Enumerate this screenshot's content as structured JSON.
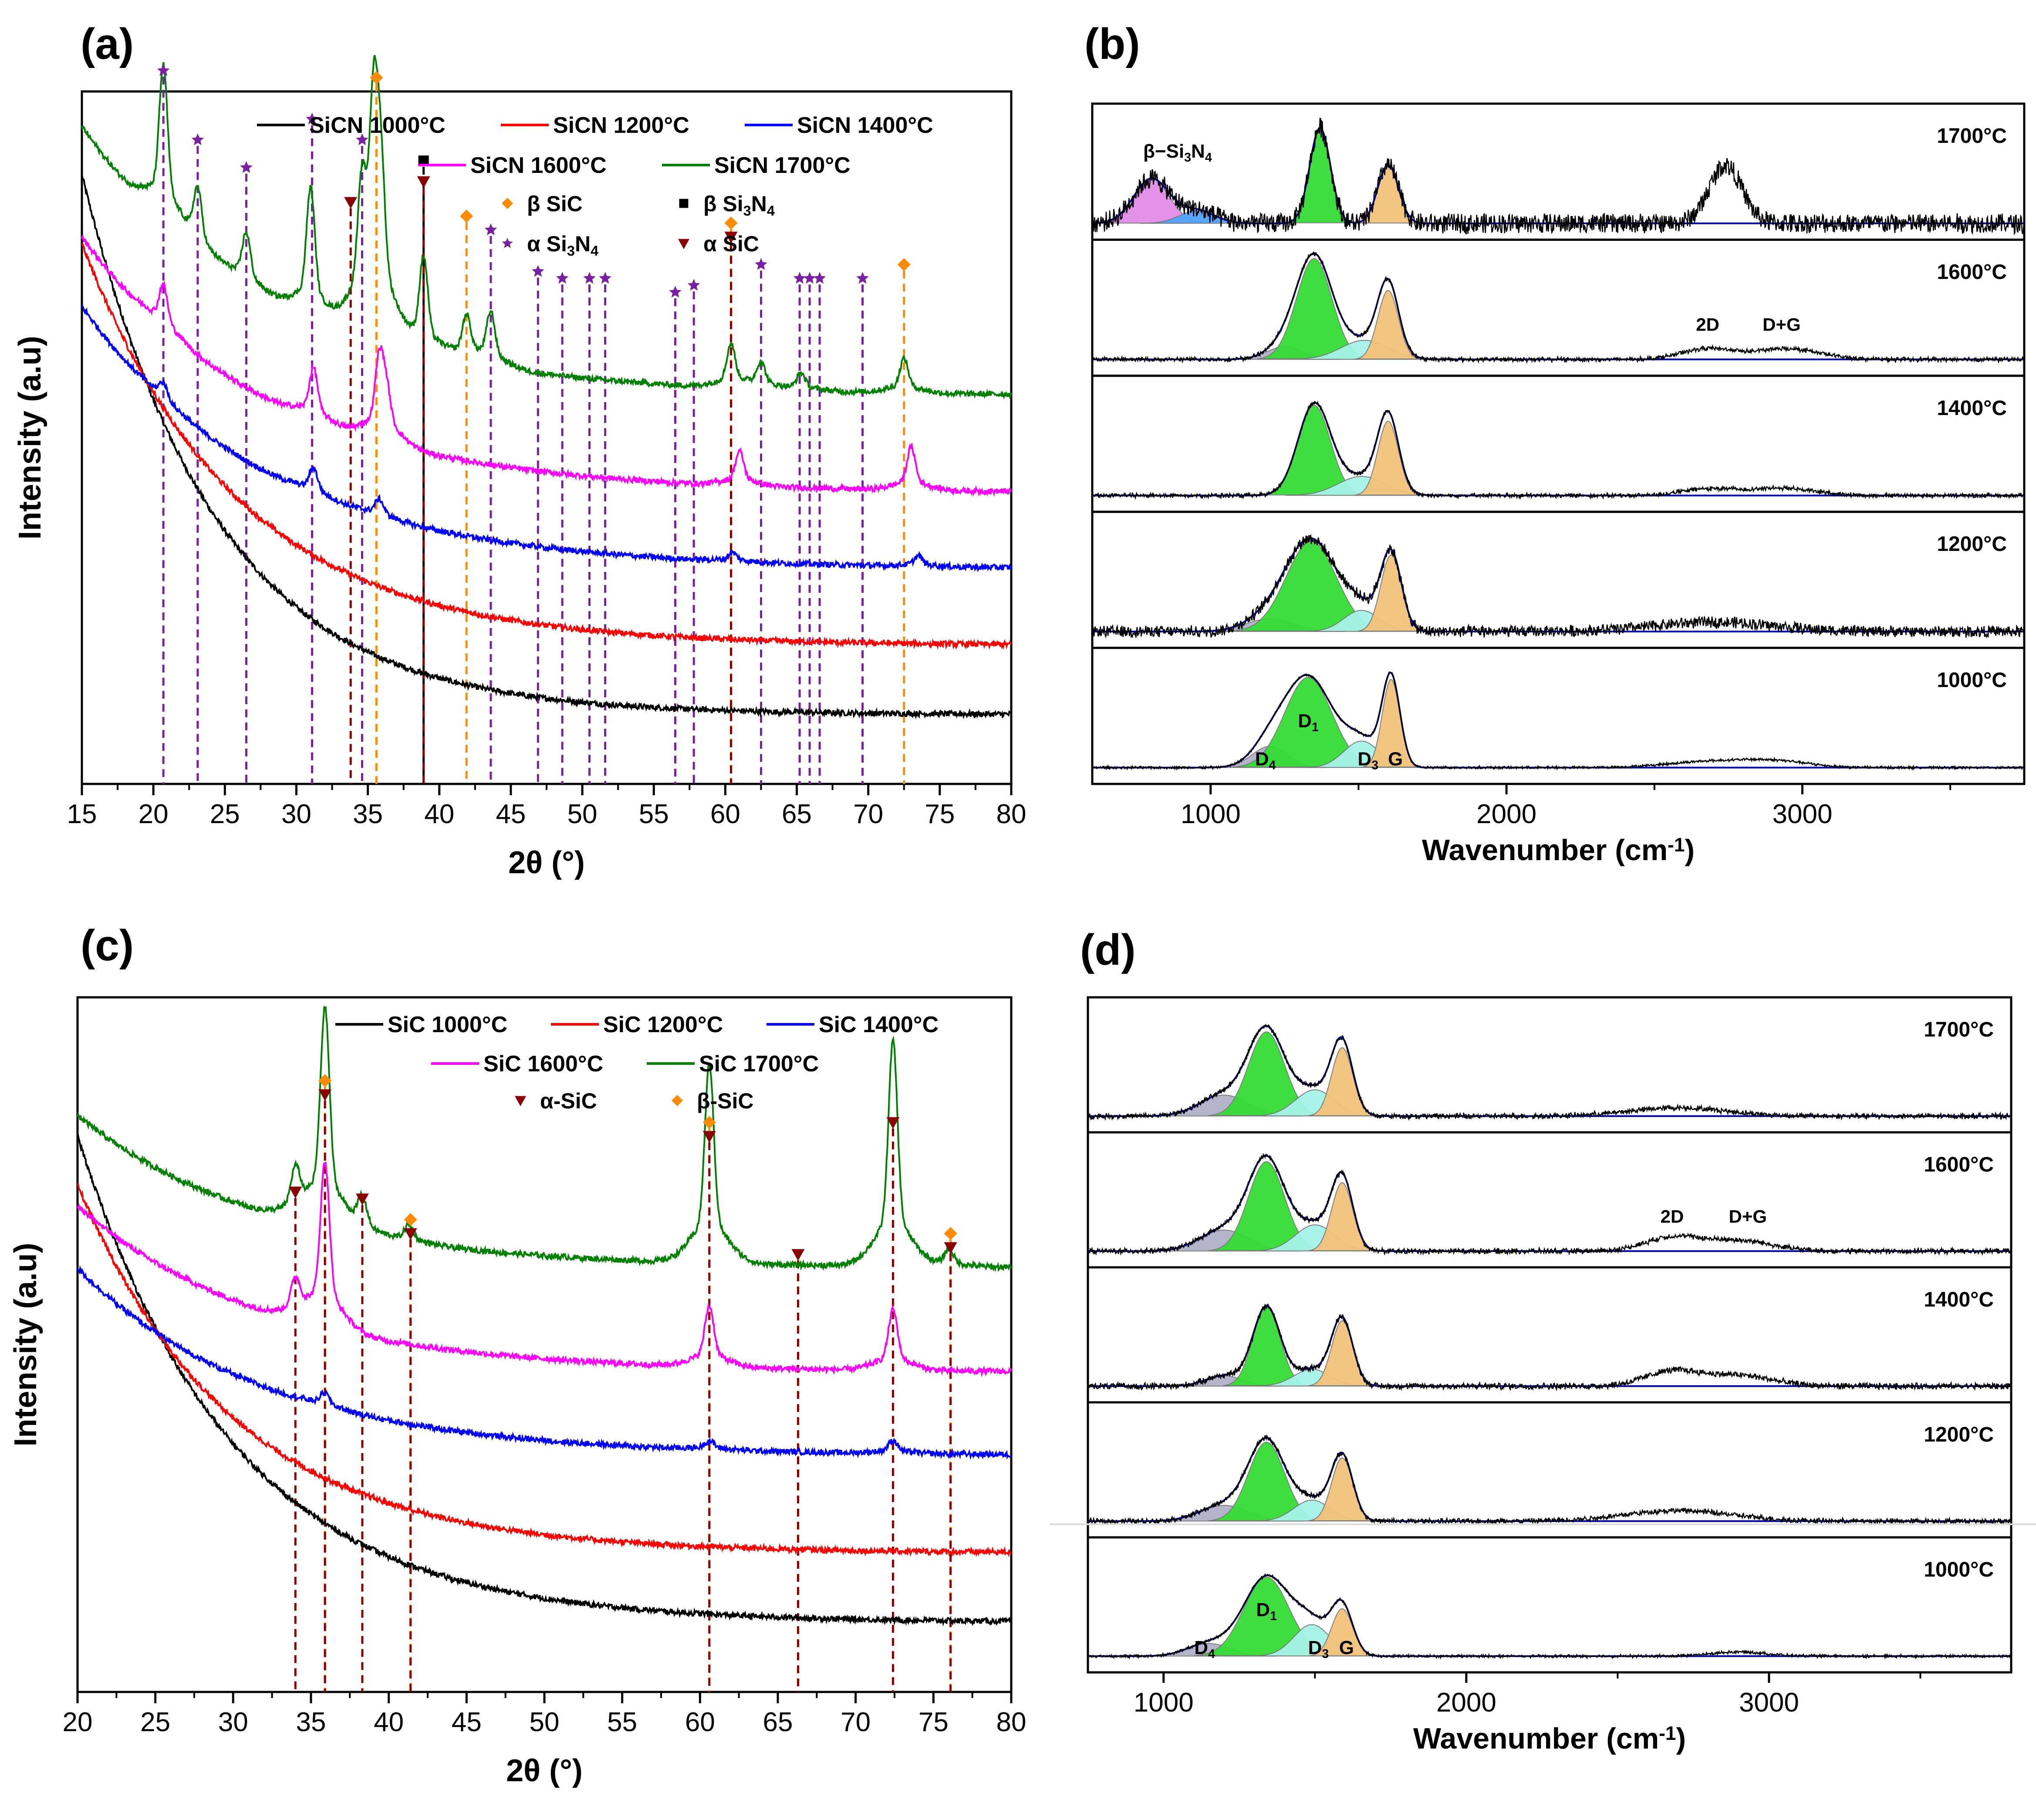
{
  "panels": {
    "a": {
      "label": "(a)"
    },
    "b": {
      "label": "(b)"
    },
    "c": {
      "label": "(c)"
    },
    "d": {
      "label": "(d)"
    }
  },
  "colors": {
    "black": "#000000",
    "red": "#ff0000",
    "blue": "#0000ff",
    "magenta": "#ff00ff",
    "green": "#008000",
    "purple": "#7b1fa2",
    "orange": "#ff8c00",
    "darkred": "#8b0000",
    "navy": "#0000aa",
    "fill_d4": "#b0b0c8",
    "fill_d1": "#33dd33",
    "fill_d3": "#a6f3e8",
    "fill_g": "#f2c27a",
    "fill_sn1": "#e38de8",
    "fill_sn2": "#4fa3ff"
  },
  "chart_data": [
    {
      "id": "a",
      "type": "line",
      "xlabel": "2θ (°)",
      "ylabel": "Intensity (a.u)",
      "xlim": [
        15,
        80
      ],
      "xticks": [
        "15",
        "20",
        "25",
        "30",
        "35",
        "40",
        "45",
        "50",
        "55",
        "60",
        "65",
        "70",
        "75",
        "80"
      ],
      "series": [
        {
          "name": "SiCN 1000°C",
          "color": "black",
          "start": 0.88,
          "end": 0.1,
          "decay": 7,
          "peaks": []
        },
        {
          "name": "SiCN 1200°C",
          "color": "red",
          "start": 0.78,
          "end": 0.2,
          "decay": 6,
          "peaks": []
        },
        {
          "name": "SiCN 1400°C",
          "color": "blue",
          "start": 0.69,
          "end": 0.31,
          "decay": 5,
          "peaks": [
            [
              20.7,
              0.02
            ],
            [
              31.2,
              0.03
            ],
            [
              35.8,
              0.02
            ],
            [
              60.5,
              0.01
            ],
            [
              73.5,
              0.012
            ]
          ]
        },
        {
          "name": "SiCN 1600°C",
          "color": "magenta",
          "start": 0.79,
          "end": 0.42,
          "decay": 5,
          "peaks": [
            [
              20.7,
              0.05
            ],
            [
              31.2,
              0.06
            ],
            [
              35.8,
              0.09
            ],
            [
              36.3,
              0.05
            ],
            [
              61,
              0.04
            ],
            [
              73,
              0.05
            ]
          ]
        },
        {
          "name": "SiCN 1700°C",
          "color": "green",
          "start": 0.95,
          "end": 0.56,
          "decay": 5,
          "peaks": [
            [
              20.7,
              0.18
            ],
            [
              23.1,
              0.07
            ],
            [
              26.5,
              0.06
            ],
            [
              31,
              0.15
            ],
            [
              34.6,
              0.14
            ],
            [
              35.4,
              0.24
            ],
            [
              35.9,
              0.16
            ],
            [
              38.9,
              0.11
            ],
            [
              41.9,
              0.05
            ],
            [
              43.6,
              0.06
            ],
            [
              60.4,
              0.05
            ],
            [
              62.5,
              0.03
            ],
            [
              65.3,
              0.02
            ],
            [
              72.5,
              0.04
            ]
          ]
        }
      ],
      "markers": [
        {
          "x": 20.7,
          "type": "alpha_si3n4",
          "top": 1.03
        },
        {
          "x": 23.1,
          "type": "alpha_si3n4",
          "top": 0.93
        },
        {
          "x": 26.5,
          "type": "alpha_si3n4",
          "top": 0.89
        },
        {
          "x": 31.1,
          "type": "alpha_si3n4",
          "top": 0.96
        },
        {
          "x": 33.8,
          "type": "alpha_sic",
          "top": 0.84
        },
        {
          "x": 34.6,
          "type": "alpha_si3n4",
          "top": 0.93
        },
        {
          "x": 35.6,
          "type": "beta_sic",
          "top": 1.02
        },
        {
          "x": 38.9,
          "type": "beta_si3n4",
          "top": 0.9
        },
        {
          "x": 38.9,
          "type": "alpha_sic",
          "top": 0.87
        },
        {
          "x": 41.9,
          "type": "beta_sic",
          "top": 0.82
        },
        {
          "x": 43.6,
          "type": "alpha_si3n4",
          "top": 0.8
        },
        {
          "x": 46.9,
          "type": "alpha_si3n4",
          "top": 0.74
        },
        {
          "x": 48.6,
          "type": "alpha_si3n4",
          "top": 0.73
        },
        {
          "x": 50.5,
          "type": "alpha_si3n4",
          "top": 0.73
        },
        {
          "x": 51.6,
          "type": "alpha_si3n4",
          "top": 0.73
        },
        {
          "x": 56.5,
          "type": "alpha_si3n4",
          "top": 0.71
        },
        {
          "x": 57.8,
          "type": "alpha_si3n4",
          "top": 0.72
        },
        {
          "x": 60.4,
          "type": "beta_sic",
          "top": 0.81
        },
        {
          "x": 60.4,
          "type": "alpha_sic",
          "top": 0.79
        },
        {
          "x": 62.5,
          "type": "alpha_si3n4",
          "top": 0.75
        },
        {
          "x": 65.2,
          "type": "alpha_si3n4",
          "top": 0.73
        },
        {
          "x": 65.9,
          "type": "alpha_si3n4",
          "top": 0.73
        },
        {
          "x": 66.6,
          "type": "alpha_si3n4",
          "top": 0.73
        },
        {
          "x": 69.6,
          "type": "alpha_si3n4",
          "top": 0.73
        },
        {
          "x": 72.5,
          "type": "beta_sic",
          "top": 0.75
        }
      ],
      "legend_series": [
        {
          "label": "SiCN 1000°C",
          "color": "black"
        },
        {
          "label": "SiCN 1200°C",
          "color": "red"
        },
        {
          "label": "SiCN 1400°C",
          "color": "blue"
        },
        {
          "label": "SiCN 1600°C",
          "color": "magenta"
        },
        {
          "label": "SiCN 1700°C",
          "color": "green"
        }
      ],
      "legend_markers": [
        {
          "label": "β SiC",
          "type": "beta_sic"
        },
        {
          "label": "β Si",
          "sub1": "3",
          "mid": "N",
          "sub2": "4",
          "type": "beta_si3n4"
        },
        {
          "label": "α Si",
          "sub1": "3",
          "mid": "N",
          "sub2": "4",
          "type": "alpha_si3n4"
        },
        {
          "label": "α SiC",
          "type": "alpha_sic"
        }
      ]
    },
    {
      "id": "b",
      "type": "line",
      "xlabel": "Wavenumber (cm",
      "xlabel_sup": "-1",
      "xlabel_end": ")",
      "xlim": [
        600,
        3750
      ],
      "xticks": [
        "1000",
        "2000",
        "3000"
      ],
      "stacks": [
        {
          "label": "1700°C",
          "bands": [
            [
              800,
              60,
              0.42,
              "fill_sn1"
            ],
            [
              955,
              60,
              0.12,
              "fill_sn2"
            ],
            [
              1370,
              35,
              0.9,
              "fill_d1"
            ],
            [
              1600,
              35,
              0.55,
              "fill_g"
            ]
          ],
          "extra": [
            [
              2740,
              55,
              0.55
            ]
          ],
          "noise": 0.09,
          "annotation": "β−Si",
          "ann_sub1": "3",
          "ann_mid": "N",
          "ann_sub2": "4"
        },
        {
          "label": "1600°C",
          "bands": [
            [
              1250,
              60,
              0.12,
              "fill_d4"
            ],
            [
              1350,
              60,
              0.95,
              "fill_d1"
            ],
            [
              1520,
              80,
              0.18,
              "fill_d3"
            ],
            [
              1600,
              35,
              0.65,
              "fill_g"
            ]
          ],
          "extra": [
            [
              2680,
              90,
              0.1
            ],
            [
              2950,
              110,
              0.1
            ]
          ],
          "noise": 0.015,
          "ann2d": "2D",
          "anndg": "D+G"
        },
        {
          "label": "1400°C",
          "bands": [
            [
              1350,
              55,
              0.85,
              "fill_d1"
            ],
            [
              1510,
              80,
              0.18,
              "fill_d3"
            ],
            [
              1600,
              35,
              0.7,
              "fill_g"
            ]
          ],
          "extra": [
            [
              2680,
              90,
              0.06
            ],
            [
              2930,
              110,
              0.07
            ]
          ],
          "noise": 0.015
        },
        {
          "label": "1200°C",
          "bands": [
            [
              1200,
              80,
              0.12,
              "fill_d4"
            ],
            [
              1340,
              85,
              0.85,
              "fill_d1"
            ],
            [
              1510,
              60,
              0.2,
              "fill_d3"
            ],
            [
              1610,
              35,
              0.72,
              "fill_g"
            ]
          ],
          "extra": [
            [
              2700,
              200,
              0.09
            ]
          ],
          "noise": 0.05
        },
        {
          "label": "1000°C",
          "bands": [
            [
              1200,
              60,
              0.2,
              "fill_d4"
            ],
            [
              1330,
              80,
              0.85,
              "fill_d1"
            ],
            [
              1510,
              60,
              0.25,
              "fill_d3"
            ],
            [
              1610,
              30,
              0.83,
              "fill_g"
            ]
          ],
          "extra": [
            [
              2700,
              150,
              0.06
            ],
            [
              2920,
              110,
              0.05
            ]
          ],
          "noise": 0.004,
          "labels": {
            "d4": "D",
            "d4_sub": "4",
            "d1": "D",
            "d1_sub": "1",
            "d3": "D",
            "d3_sub": "3",
            "g": "G"
          }
        }
      ]
    },
    {
      "id": "c",
      "type": "line",
      "xlabel": "2θ (°)",
      "ylabel": "Intensity (a.u)",
      "xlim": [
        20,
        80
      ],
      "xticks": [
        "20",
        "25",
        "30",
        "35",
        "40",
        "45",
        "50",
        "55",
        "60",
        "65",
        "70",
        "75",
        "80"
      ],
      "series": [
        {
          "name": "SiC 1000°C",
          "color": "black",
          "start": 0.8,
          "end": 0.1,
          "decay": 6,
          "peaks": []
        },
        {
          "name": "SiC 1200°C",
          "color": "red",
          "start": 0.73,
          "end": 0.2,
          "decay": 6,
          "peaks": []
        },
        {
          "name": "SiC 1400°C",
          "color": "blue",
          "start": 0.61,
          "end": 0.34,
          "decay": 5,
          "peaks": [
            [
              35.9,
              0.015
            ],
            [
              60.6,
              0.01
            ],
            [
              72.4,
              0.015
            ]
          ]
        },
        {
          "name": "SiC 1600°C",
          "color": "magenta",
          "start": 0.7,
          "end": 0.46,
          "decay": 5,
          "peaks": [
            [
              34.0,
              0.04
            ],
            [
              35.9,
              0.19
            ],
            [
              60.6,
              0.07
            ],
            [
              72.4,
              0.07
            ]
          ]
        },
        {
          "name": "SiC 1700°C",
          "color": "green",
          "start": 0.83,
          "end": 0.61,
          "decay": 5,
          "peaks": [
            [
              34.0,
              0.05
            ],
            [
              35.9,
              0.25
            ],
            [
              38.3,
              0.04
            ],
            [
              41.3,
              0.02
            ],
            [
              60.6,
              0.23
            ],
            [
              72.4,
              0.26
            ],
            [
              76.0,
              0.02
            ]
          ]
        }
      ],
      "markers": [
        {
          "x": 34.0,
          "type": "alpha_sic",
          "top": 0.72
        },
        {
          "x": 35.9,
          "type": "beta_sic",
          "top": 0.88
        },
        {
          "x": 35.9,
          "type": "alpha_sic",
          "top": 0.86
        },
        {
          "x": 38.3,
          "type": "alpha_sic",
          "top": 0.71
        },
        {
          "x": 41.4,
          "type": "beta_sic",
          "top": 0.68
        },
        {
          "x": 41.4,
          "type": "alpha_sic",
          "top": 0.66
        },
        {
          "x": 60.6,
          "type": "beta_sic",
          "top": 0.82
        },
        {
          "x": 60.6,
          "type": "alpha_sic",
          "top": 0.8
        },
        {
          "x": 66.3,
          "type": "alpha_sic",
          "top": 0.63
        },
        {
          "x": 72.4,
          "type": "alpha_sic",
          "top": 0.82
        },
        {
          "x": 76.1,
          "type": "beta_sic",
          "top": 0.66
        },
        {
          "x": 76.1,
          "type": "alpha_sic",
          "top": 0.64
        }
      ],
      "legend_series": [
        {
          "label": "SiC 1000°C",
          "color": "black"
        },
        {
          "label": "SiC 1200°C",
          "color": "red"
        },
        {
          "label": "SiC 1400°C",
          "color": "blue"
        },
        {
          "label": "SiC 1600°C",
          "color": "magenta"
        },
        {
          "label": "SiC 1700°C",
          "color": "green"
        }
      ],
      "legend_markers": [
        {
          "label": "α-SiC",
          "type": "alpha_sic"
        },
        {
          "label": "β-SiC",
          "type": "beta_sic"
        }
      ]
    },
    {
      "id": "d",
      "type": "line",
      "xlabel": "Wavenumber (cm",
      "xlabel_sup": "-1",
      "xlabel_end": ")",
      "xlim": [
        750,
        3800
      ],
      "xticks": [
        "1000",
        "2000",
        "3000"
      ],
      "stacks": [
        {
          "label": "1700°C",
          "bands": [
            [
              1200,
              80,
              0.2,
              "fill_d4"
            ],
            [
              1340,
              60,
              0.8,
              "fill_d1"
            ],
            [
              1500,
              65,
              0.25,
              "fill_d3"
            ],
            [
              1590,
              35,
              0.65,
              "fill_g"
            ]
          ],
          "extra": [
            [
              2700,
              160,
              0.08
            ]
          ],
          "noise": 0.02
        },
        {
          "label": "1600°C",
          "bands": [
            [
              1200,
              80,
              0.2,
              "fill_d4"
            ],
            [
              1340,
              60,
              0.85,
              "fill_d1"
            ],
            [
              1500,
              65,
              0.25,
              "fill_d3"
            ],
            [
              1590,
              35,
              0.65,
              "fill_g"
            ]
          ],
          "extra": [
            [
              2680,
              90,
              0.13
            ],
            [
              2900,
              110,
              0.1
            ]
          ],
          "noise": 0.02,
          "ann2d": "2D",
          "anndg": "D+G"
        },
        {
          "label": "1400°C",
          "bands": [
            [
              1200,
              60,
              0.1,
              "fill_d4"
            ],
            [
              1340,
              45,
              0.75,
              "fill_d1"
            ],
            [
              1490,
              60,
              0.16,
              "fill_d3"
            ],
            [
              1590,
              35,
              0.62,
              "fill_g"
            ]
          ],
          "extra": [
            [
              2680,
              90,
              0.14
            ],
            [
              2900,
              110,
              0.1
            ]
          ],
          "noise": 0.025
        },
        {
          "label": "1200°C",
          "bands": [
            [
              1200,
              80,
              0.15,
              "fill_d4"
            ],
            [
              1340,
              60,
              0.75,
              "fill_d1"
            ],
            [
              1490,
              60,
              0.2,
              "fill_d3"
            ],
            [
              1590,
              35,
              0.6,
              "fill_g"
            ]
          ],
          "extra": [
            [
              2700,
              180,
              0.1
            ]
          ],
          "noise": 0.02
        },
        {
          "label": "1000°C",
          "bands": [
            [
              1150,
              70,
              0.12,
              "fill_d4"
            ],
            [
              1340,
              75,
              0.75,
              "fill_d1"
            ],
            [
              1490,
              60,
              0.3,
              "fill_d3"
            ],
            [
              1590,
              35,
              0.45,
              "fill_g"
            ]
          ],
          "extra": [
            [
              2900,
              90,
              0.04
            ]
          ],
          "noise": 0.006,
          "labels": {
            "d4": "D",
            "d4_sub": "4",
            "d1": "D",
            "d1_sub": "1",
            "d3": "D",
            "d3_sub": "3",
            "g": "G"
          }
        }
      ]
    }
  ]
}
